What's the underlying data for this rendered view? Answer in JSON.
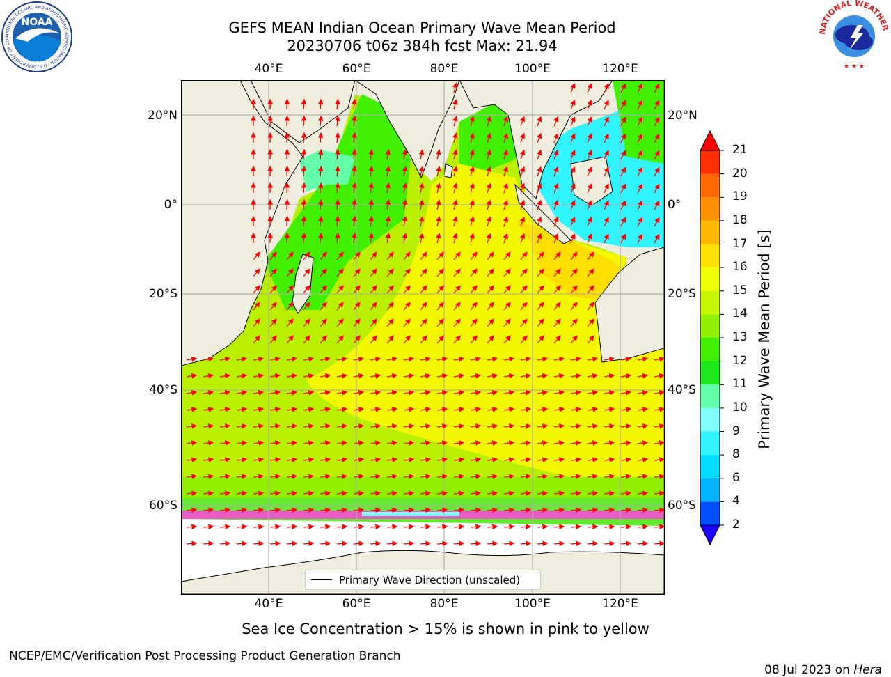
{
  "title": {
    "line1": "GEFS MEAN Indian Ocean Primary Wave Mean Period",
    "line2": "20230706 t06z 384h fcst   Max: 21.94"
  },
  "axes": {
    "lon_ticks": [
      "40°E",
      "60°E",
      "80°E",
      "100°E",
      "120°E"
    ],
    "lat_ticks": [
      "20°N",
      "0°",
      "20°S",
      "40°S",
      "60°S"
    ],
    "lon_range": [
      20,
      130
    ],
    "lat_range": [
      -72,
      28
    ]
  },
  "legend": {
    "label": "Primary Wave Direction (unscaled)"
  },
  "colorbar": {
    "label": "Primary Wave Mean Period [s]",
    "ticks": [
      "2",
      "4",
      "6",
      "8",
      "9",
      "10",
      "11",
      "12",
      "13",
      "14",
      "15",
      "16",
      "17",
      "18",
      "19",
      "20",
      "21"
    ],
    "colors": [
      "#0050ff",
      "#00b4ff",
      "#00dcff",
      "#30f4ff",
      "#80ffff",
      "#64ffaa",
      "#18e818",
      "#40f000",
      "#90f000",
      "#c8f800",
      "#f0ff00",
      "#ffe000",
      "#ffb800",
      "#ff9000",
      "#ff6800",
      "#ff3000"
    ],
    "extend_high_color": "#ff0000",
    "extend_low_color": "#1a00ff"
  },
  "caption": "Sea Ice Concentration > 15% is shown in pink to yellow",
  "footer": {
    "left": "NCEP/EMC/Verification Post Processing Product Generation Branch",
    "date": "08 Jul 2023 on ",
    "host": "Hera"
  },
  "logos": {
    "noaa": {
      "text": "NOAA",
      "ring_text": "NATIONAL OCEANIC AND ATMOSPHERIC ADMINISTRATION · U.S. DEPARTMENT OF COMMERCE"
    },
    "nws": {
      "ring_text": "NATIONAL WEATHER SERVICE"
    }
  },
  "colors": {
    "land": "#efedde",
    "grid": "#b0b0b0",
    "arrow": "#ff0000",
    "ice": "#ff44dd"
  }
}
